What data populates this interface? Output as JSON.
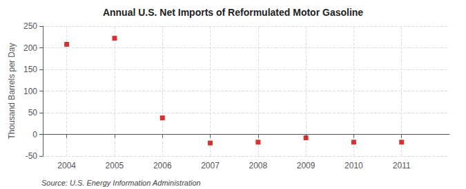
{
  "chart_data": {
    "type": "scatter",
    "title": "Annual U.S. Net Imports of Reformulated Motor Gasoline",
    "ylabel": "Thousand Barrels per Day",
    "annotations": [
      "Source: U.S. Energy Information Administration"
    ],
    "x": [
      2004,
      2005,
      2006,
      2007,
      2008,
      2009,
      2010,
      2011
    ],
    "values": [
      208,
      222,
      38,
      -20,
      -18,
      -8,
      -18,
      -18
    ],
    "color": "#cc0000",
    "marker": "square",
    "xlim": [
      2003.5,
      2012.0
    ],
    "xticks": [
      2004,
      2005,
      2006,
      2007,
      2008,
      2009,
      2010,
      2011
    ],
    "ylim": [
      -50,
      250
    ],
    "yticks": [
      -50,
      0,
      50,
      100,
      150,
      200,
      250
    ],
    "grid": true
  }
}
